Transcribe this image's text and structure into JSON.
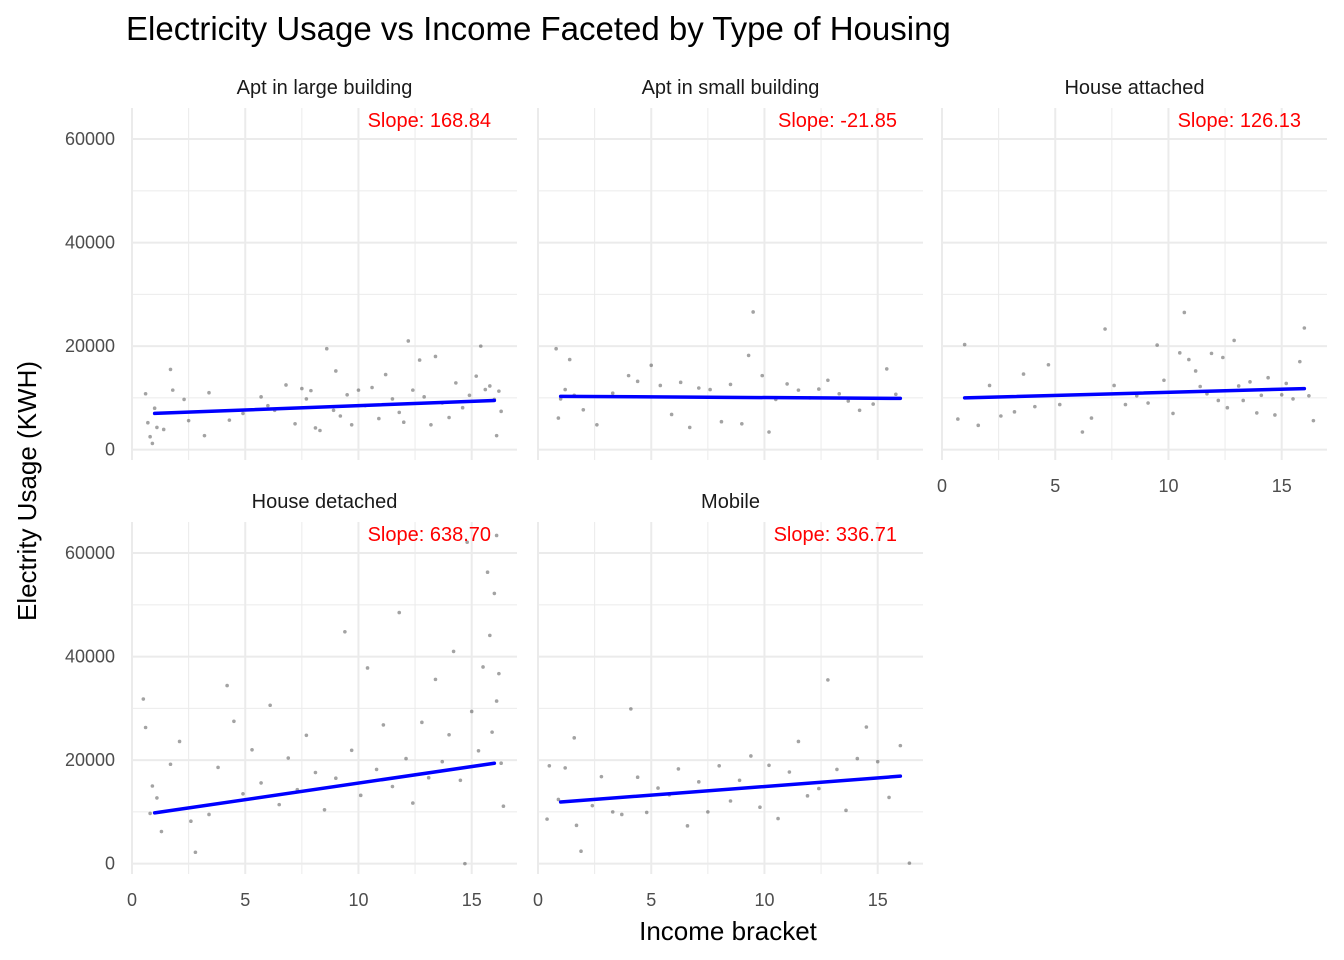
{
  "chart_data": {
    "type": "scatter",
    "title": "Electricity Usage vs Income Faceted by Type of Housing",
    "xlabel": "Income bracket",
    "ylabel": "Electrity Usage (KWH)",
    "xlim": [
      0,
      17
    ],
    "ylim": [
      -2000,
      66000
    ],
    "x_ticks": [
      "0",
      "5",
      "10",
      "15"
    ],
    "x_tick_values": [
      0,
      5,
      10,
      15
    ],
    "y_ticks": [
      "0",
      "20000",
      "40000",
      "60000"
    ],
    "y_tick_values": [
      0,
      20000,
      40000,
      60000
    ],
    "grid": true,
    "colors": {
      "points": "#333333",
      "fit_line": "#0000ff",
      "slope_text": "#ff0000",
      "grid": "#ebebeb"
    },
    "facets": [
      {
        "label": "Apt in large building",
        "slope_label": "Slope: 168.84",
        "slope": 168.84,
        "fit": {
          "x": [
            1,
            16
          ],
          "y": [
            7000,
            9500
          ]
        },
        "points": [
          [
            0.6,
            10800
          ],
          [
            0.7,
            5200
          ],
          [
            0.8,
            2500
          ],
          [
            0.9,
            1200
          ],
          [
            1,
            8000
          ],
          [
            1.1,
            4300
          ],
          [
            1.4,
            3900
          ],
          [
            1.7,
            15500
          ],
          [
            1.8,
            11500
          ],
          [
            2.3,
            9700
          ],
          [
            2.5,
            5600
          ],
          [
            3.2,
            2700
          ],
          [
            3.4,
            11000
          ],
          [
            4.3,
            5700
          ],
          [
            4.9,
            7000
          ],
          [
            5.7,
            10200
          ],
          [
            6,
            8500
          ],
          [
            6.3,
            7600
          ],
          [
            6.8,
            12500
          ],
          [
            7.2,
            5000
          ],
          [
            7.5,
            11800
          ],
          [
            7.7,
            9800
          ],
          [
            7.9,
            11400
          ],
          [
            8.1,
            4200
          ],
          [
            8.3,
            3700
          ],
          [
            8.6,
            19500
          ],
          [
            8.9,
            7600
          ],
          [
            9,
            15200
          ],
          [
            9.2,
            6500
          ],
          [
            9.5,
            10600
          ],
          [
            9.7,
            4800
          ],
          [
            10,
            11500
          ],
          [
            10.3,
            8500
          ],
          [
            10.6,
            12000
          ],
          [
            10.9,
            6000
          ],
          [
            11.2,
            14500
          ],
          [
            11.5,
            9800
          ],
          [
            11.8,
            7200
          ],
          [
            12,
            5300
          ],
          [
            12.2,
            21000
          ],
          [
            12.4,
            11500
          ],
          [
            12.7,
            17300
          ],
          [
            12.9,
            10200
          ],
          [
            13.2,
            4800
          ],
          [
            13.4,
            18000
          ],
          [
            13.7,
            9000
          ],
          [
            14,
            6200
          ],
          [
            14.3,
            12900
          ],
          [
            14.6,
            8100
          ],
          [
            14.9,
            10500
          ],
          [
            15.2,
            14200
          ],
          [
            15.4,
            20000
          ],
          [
            15.6,
            11600
          ],
          [
            15.8,
            12300
          ],
          [
            16,
            9700
          ],
          [
            16.1,
            2700
          ],
          [
            16.2,
            11300
          ],
          [
            16.3,
            7400
          ]
        ]
      },
      {
        "label": "Apt in small building",
        "slope_label": "Slope: -21.85",
        "slope": -21.85,
        "fit": {
          "x": [
            1,
            16
          ],
          "y": [
            10300,
            9900
          ]
        },
        "points": [
          [
            0.8,
            19500
          ],
          [
            0.9,
            6100
          ],
          [
            1,
            9800
          ],
          [
            1.2,
            11600
          ],
          [
            1.4,
            17400
          ],
          [
            1.6,
            10500
          ],
          [
            2,
            7700
          ],
          [
            2.6,
            4800
          ],
          [
            3.3,
            10900
          ],
          [
            4,
            14300
          ],
          [
            4.4,
            13200
          ],
          [
            5,
            16300
          ],
          [
            5.4,
            12400
          ],
          [
            5.9,
            6800
          ],
          [
            6.3,
            13000
          ],
          [
            6.7,
            4300
          ],
          [
            7.1,
            11900
          ],
          [
            7.6,
            11600
          ],
          [
            8.1,
            5400
          ],
          [
            8.5,
            12600
          ],
          [
            9,
            5000
          ],
          [
            9.3,
            18200
          ],
          [
            9.5,
            26600
          ],
          [
            9.9,
            14300
          ],
          [
            10.2,
            3400
          ],
          [
            10.5,
            9700
          ],
          [
            11,
            12700
          ],
          [
            11.5,
            11500
          ],
          [
            12,
            10000
          ],
          [
            12.4,
            11700
          ],
          [
            12.8,
            13400
          ],
          [
            13.3,
            10800
          ],
          [
            13.7,
            9400
          ],
          [
            14.2,
            7600
          ],
          [
            14.8,
            8800
          ],
          [
            15.4,
            15600
          ],
          [
            15.8,
            10700
          ]
        ]
      },
      {
        "label": "House attached",
        "slope_label": "Slope: 126.13",
        "slope": 126.13,
        "fit": {
          "x": [
            1,
            16
          ],
          "y": [
            10000,
            11800
          ]
        },
        "points": [
          [
            0.7,
            5900
          ],
          [
            1,
            20300
          ],
          [
            1.6,
            4700
          ],
          [
            2.1,
            12400
          ],
          [
            2.6,
            6500
          ],
          [
            3.2,
            7300
          ],
          [
            3.6,
            14600
          ],
          [
            4.1,
            8300
          ],
          [
            4.7,
            16400
          ],
          [
            5.2,
            8700
          ],
          [
            6.2,
            3400
          ],
          [
            6.6,
            6100
          ],
          [
            7.2,
            23300
          ],
          [
            7.6,
            12400
          ],
          [
            8.1,
            8700
          ],
          [
            8.6,
            10400
          ],
          [
            9.1,
            9000
          ],
          [
            9.5,
            20200
          ],
          [
            9.8,
            13400
          ],
          [
            10.2,
            7000
          ],
          [
            10.5,
            18700
          ],
          [
            10.7,
            26500
          ],
          [
            10.9,
            17400
          ],
          [
            11.2,
            15200
          ],
          [
            11.4,
            12200
          ],
          [
            11.7,
            10800
          ],
          [
            11.9,
            18600
          ],
          [
            12.2,
            9500
          ],
          [
            12.4,
            17800
          ],
          [
            12.6,
            8100
          ],
          [
            12.9,
            21100
          ],
          [
            13.1,
            12300
          ],
          [
            13.3,
            9500
          ],
          [
            13.6,
            13100
          ],
          [
            13.9,
            7100
          ],
          [
            14.1,
            10500
          ],
          [
            14.4,
            13900
          ],
          [
            14.7,
            6700
          ],
          [
            15,
            10600
          ],
          [
            15.2,
            12800
          ],
          [
            15.5,
            9800
          ],
          [
            15.8,
            17000
          ],
          [
            16,
            23500
          ],
          [
            16.2,
            10400
          ],
          [
            16.4,
            5600
          ]
        ]
      },
      {
        "label": "House detached",
        "slope_label": "Slope: 638.70",
        "slope": 638.7,
        "fit": {
          "x": [
            1,
            16
          ],
          "y": [
            9800,
            19400
          ]
        },
        "points": [
          [
            0.5,
            31800
          ],
          [
            0.6,
            26300
          ],
          [
            0.8,
            9700
          ],
          [
            0.9,
            15000
          ],
          [
            1.1,
            12700
          ],
          [
            1.3,
            6200
          ],
          [
            1.7,
            19200
          ],
          [
            2.1,
            23600
          ],
          [
            2.6,
            8200
          ],
          [
            2.8,
            2200
          ],
          [
            3.4,
            9500
          ],
          [
            3.8,
            18600
          ],
          [
            4.2,
            34400
          ],
          [
            4.5,
            27500
          ],
          [
            4.9,
            13500
          ],
          [
            5.3,
            22000
          ],
          [
            5.7,
            15600
          ],
          [
            6.1,
            30600
          ],
          [
            6.5,
            11400
          ],
          [
            6.9,
            20400
          ],
          [
            7.3,
            14300
          ],
          [
            7.7,
            24800
          ],
          [
            8.1,
            17600
          ],
          [
            8.5,
            10400
          ],
          [
            9,
            16500
          ],
          [
            9.4,
            44800
          ],
          [
            9.7,
            21900
          ],
          [
            10.1,
            13200
          ],
          [
            10.4,
            37800
          ],
          [
            10.8,
            18200
          ],
          [
            11.1,
            26800
          ],
          [
            11.5,
            14900
          ],
          [
            11.8,
            48500
          ],
          [
            12.1,
            20300
          ],
          [
            12.4,
            11700
          ],
          [
            12.8,
            27300
          ],
          [
            13.1,
            16600
          ],
          [
            13.4,
            35600
          ],
          [
            13.7,
            19700
          ],
          [
            14,
            24900
          ],
          [
            14.2,
            41000
          ],
          [
            14.5,
            16100
          ],
          [
            14.7,
            0
          ],
          [
            14.8,
            62100
          ],
          [
            15,
            29400
          ],
          [
            15.3,
            21800
          ],
          [
            15.5,
            38000
          ],
          [
            15.7,
            56300
          ],
          [
            15.8,
            44100
          ],
          [
            15.9,
            25400
          ],
          [
            16,
            52200
          ],
          [
            16.1,
            31400
          ],
          [
            16.1,
            63400
          ],
          [
            16.2,
            36700
          ],
          [
            16.3,
            19400
          ],
          [
            16.4,
            11100
          ]
        ]
      },
      {
        "label": "Mobile",
        "slope_label": "Slope: 336.71",
        "slope": 336.71,
        "fit": {
          "x": [
            1,
            16
          ],
          "y": [
            11900,
            16900
          ]
        },
        "points": [
          [
            0.4,
            8600
          ],
          [
            0.5,
            18900
          ],
          [
            0.9,
            12400
          ],
          [
            1.2,
            18500
          ],
          [
            1.6,
            24300
          ],
          [
            1.7,
            7400
          ],
          [
            1.9,
            2400
          ],
          [
            2.4,
            11200
          ],
          [
            2.8,
            16800
          ],
          [
            3.3,
            10000
          ],
          [
            3.7,
            9500
          ],
          [
            4.1,
            29900
          ],
          [
            4.4,
            16700
          ],
          [
            4.8,
            9900
          ],
          [
            5.3,
            14600
          ],
          [
            5.8,
            13300
          ],
          [
            6.2,
            18300
          ],
          [
            6.6,
            7300
          ],
          [
            7.1,
            15800
          ],
          [
            7.5,
            10000
          ],
          [
            8,
            18900
          ],
          [
            8.5,
            12100
          ],
          [
            8.9,
            16100
          ],
          [
            9.4,
            20800
          ],
          [
            9.8,
            10900
          ],
          [
            10.2,
            19000
          ],
          [
            10.6,
            8700
          ],
          [
            11.1,
            17700
          ],
          [
            11.5,
            23600
          ],
          [
            11.9,
            13100
          ],
          [
            12.4,
            14500
          ],
          [
            12.8,
            35500
          ],
          [
            13.2,
            18200
          ],
          [
            13.6,
            10300
          ],
          [
            14.1,
            20300
          ],
          [
            14.5,
            26400
          ],
          [
            15,
            19700
          ],
          [
            15.5,
            12800
          ],
          [
            16,
            22800
          ],
          [
            16.4,
            100
          ]
        ]
      }
    ]
  }
}
